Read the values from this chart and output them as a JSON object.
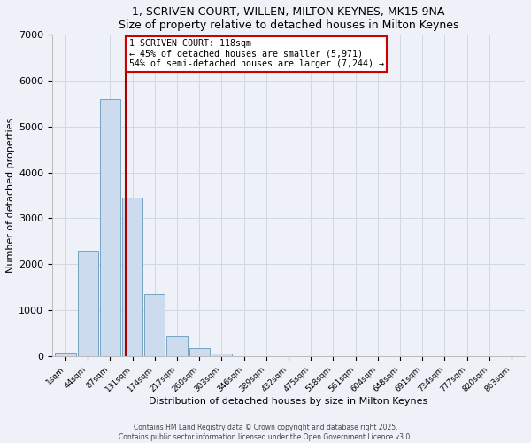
{
  "title": "1, SCRIVEN COURT, WILLEN, MILTON KEYNES, MK15 9NA",
  "subtitle": "Size of property relative to detached houses in Milton Keynes",
  "xlabel": "Distribution of detached houses by size in Milton Keynes",
  "ylabel": "Number of detached properties",
  "bin_labels": [
    "1sqm",
    "44sqm",
    "87sqm",
    "131sqm",
    "174sqm",
    "217sqm",
    "260sqm",
    "303sqm",
    "346sqm",
    "389sqm",
    "432sqm",
    "475sqm",
    "518sqm",
    "561sqm",
    "604sqm",
    "648sqm",
    "691sqm",
    "734sqm",
    "777sqm",
    "820sqm",
    "863sqm"
  ],
  "bar_values": [
    70,
    2300,
    5600,
    3450,
    1350,
    450,
    175,
    55,
    10,
    0,
    0,
    0,
    0,
    0,
    0,
    0,
    0,
    0,
    0,
    0,
    0
  ],
  "bar_color": "#ccdcee",
  "bar_edge_color": "#6699bb",
  "vline_color": "#aa0000",
  "annotation_title": "1 SCRIVEN COURT: 118sqm",
  "annotation_line2": "← 45% of detached houses are smaller (5,971)",
  "annotation_line3": "54% of semi-detached houses are larger (7,244) →",
  "annotation_box_color": "#ffffff",
  "annotation_box_edge": "#cc0000",
  "ylim": [
    0,
    7000
  ],
  "yticks": [
    0,
    1000,
    2000,
    3000,
    4000,
    5000,
    6000,
    7000
  ],
  "footer1": "Contains HM Land Registry data © Crown copyright and database right 2025.",
  "footer2": "Contains public sector information licensed under the Open Government Licence v3.0.",
  "bg_color": "#eef2f8",
  "plot_bg_color": "#eef2f8",
  "grid_color": "#d0d8e4"
}
